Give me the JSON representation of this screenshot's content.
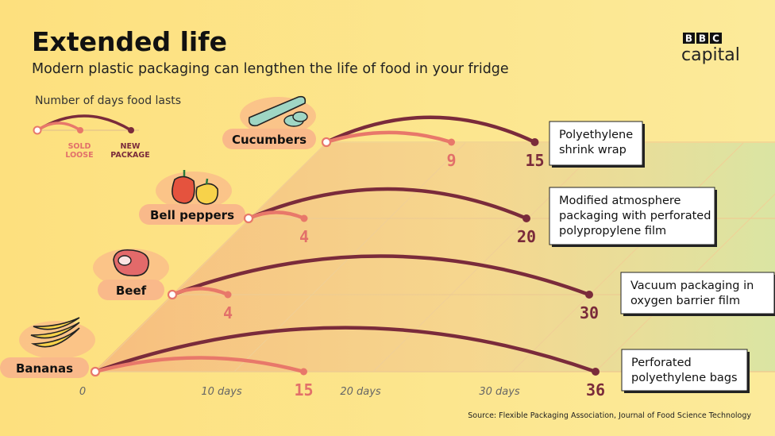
{
  "title": "Extended life",
  "subtitle": "Modern plastic packaging can lengthen the life of food in your fridge",
  "logo": {
    "letters": [
      "B",
      "B",
      "C"
    ],
    "word": "capital"
  },
  "legend": {
    "title": "Number of days food lasts",
    "loose": "SOLD LOOSE",
    "packaged": "NEW PACKAGE"
  },
  "source": "Source: Flexible Packaging Association, Journal of Food Science Technology",
  "colors": {
    "loose": "#e8786a",
    "packaged": "#7a2b3b",
    "loose_text": "#e2706a",
    "packaged_text": "#7a2b3b"
  },
  "chart_data": {
    "type": "line",
    "title": "Extended life",
    "xlabel": "Number of days food lasts",
    "xticks": [
      "0",
      "10 days",
      "20 days",
      "30 days"
    ],
    "xlim": [
      0,
      36
    ],
    "categories": [
      "Bananas",
      "Beef",
      "Bell peppers",
      "Cucumbers"
    ],
    "series": [
      {
        "name": "SOLD LOOSE",
        "values": [
          15,
          4,
          4,
          9
        ]
      },
      {
        "name": "NEW PACKAGE",
        "values": [
          36,
          30,
          20,
          15
        ]
      }
    ],
    "packaging": [
      [
        "Perforated",
        "polyethylene bags"
      ],
      [
        "Vacuum packaging in",
        "oxygen barrier film"
      ],
      [
        "Modified atmosphere",
        "packaging with perforated",
        "polypropylene film"
      ],
      [
        "Polyethylene",
        "shrink wrap"
      ]
    ],
    "icons": [
      "banana-icon",
      "steak-icon",
      "bell-pepper-icon",
      "cucumber-icon"
    ]
  }
}
